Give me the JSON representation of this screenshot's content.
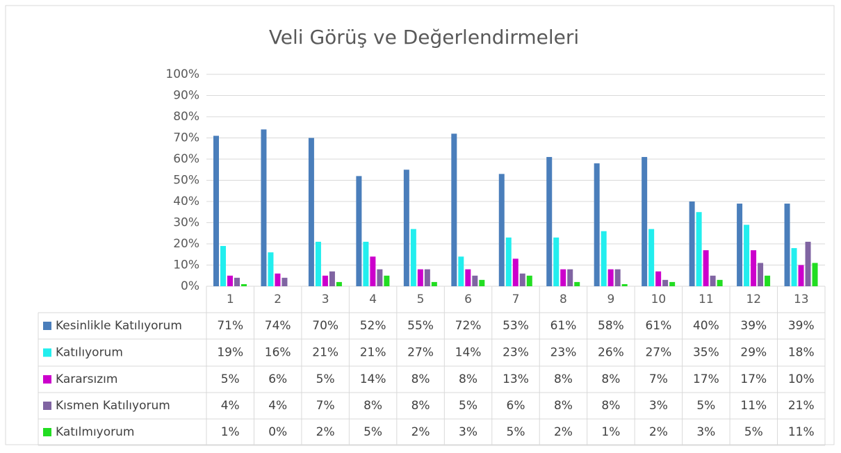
{
  "chart_data": {
    "type": "bar",
    "title": "Veli Görüş ve Değerlendirmeleri",
    "categories": [
      "1",
      "2",
      "3",
      "4",
      "5",
      "6",
      "7",
      "8",
      "9",
      "10",
      "11",
      "12",
      "13"
    ],
    "ylim": [
      0,
      100
    ],
    "yticks": [
      {
        "value": 0,
        "label": "0%"
      },
      {
        "value": 10,
        "label": "10%"
      },
      {
        "value": 20,
        "label": "20%"
      },
      {
        "value": 30,
        "label": "30%"
      },
      {
        "value": 40,
        "label": "40%"
      },
      {
        "value": 50,
        "label": "50%"
      },
      {
        "value": 60,
        "label": "60%"
      },
      {
        "value": 70,
        "label": "70%"
      },
      {
        "value": 80,
        "label": "80%"
      },
      {
        "value": 90,
        "label": "90%"
      },
      {
        "value": 100,
        "label": "100%"
      }
    ],
    "grid": true,
    "series": [
      {
        "name": "Kesinlikle Katılıyorum",
        "color": "#4a7ebb",
        "values": [
          71,
          74,
          70,
          52,
          55,
          72,
          53,
          61,
          58,
          61,
          40,
          39,
          39
        ],
        "value_labels": [
          "71%",
          "74%",
          "70%",
          "52%",
          "55%",
          "72%",
          "53%",
          "61%",
          "58%",
          "61%",
          "40%",
          "39%",
          "39%"
        ]
      },
      {
        "name": "Katılıyorum",
        "color": "#22eeee",
        "values": [
          19,
          16,
          21,
          21,
          27,
          14,
          23,
          23,
          26,
          27,
          35,
          29,
          18
        ],
        "value_labels": [
          "19%",
          "16%",
          "21%",
          "21%",
          "27%",
          "14%",
          "23%",
          "23%",
          "26%",
          "27%",
          "35%",
          "29%",
          "18%"
        ]
      },
      {
        "name": "Kararsızım",
        "color": "#cc00cc",
        "values": [
          5,
          6,
          5,
          14,
          8,
          8,
          13,
          8,
          8,
          7,
          17,
          17,
          10
        ],
        "value_labels": [
          "5%",
          "6%",
          "5%",
          "14%",
          "8%",
          "8%",
          "13%",
          "8%",
          "8%",
          "7%",
          "17%",
          "17%",
          "10%"
        ]
      },
      {
        "name": "Kısmen Katılıyorum",
        "color": "#8064a2",
        "values": [
          4,
          4,
          7,
          8,
          8,
          5,
          6,
          8,
          8,
          3,
          5,
          11,
          21
        ],
        "value_labels": [
          "4%",
          "4%",
          "7%",
          "8%",
          "8%",
          "5%",
          "6%",
          "8%",
          "8%",
          "3%",
          "5%",
          "11%",
          "21%"
        ]
      },
      {
        "name": "Katılmıyorum",
        "color": "#22dd22",
        "values": [
          1,
          0,
          2,
          5,
          2,
          3,
          5,
          2,
          1,
          2,
          3,
          5,
          11
        ],
        "value_labels": [
          "1%",
          "0%",
          "2%",
          "5%",
          "2%",
          "3%",
          "5%",
          "2%",
          "1%",
          "2%",
          "3%",
          "5%",
          "11%"
        ]
      }
    ]
  }
}
